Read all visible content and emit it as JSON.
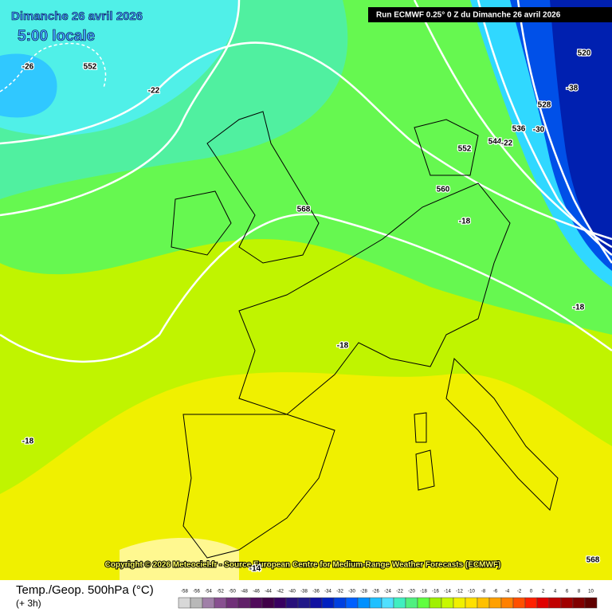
{
  "header": {
    "date": "Dimanche 26 avril 2026",
    "time": "5:00 locale",
    "run": "Run ECMWF 0.25° 0 Z du Dimanche 26 avril 2026"
  },
  "copyright": "Copyright © 2026 Meteociel.fr - Source European Centre for Medium-Range Weather Forecasts (ECMWF)",
  "contour_labels": [
    "-26",
    "552",
    "-22",
    "568",
    "552",
    "560",
    "-18",
    "520",
    "-38",
    "528",
    "536",
    "-30",
    "544",
    "-22",
    "-18",
    "-18",
    "-18",
    "568",
    "-14"
  ],
  "footer": {
    "title": "Temp./Geop. 500hPa (°C)",
    "step": "(+ 3h)"
  },
  "scale": {
    "labels": [
      -58,
      -56,
      -54,
      -52,
      -50,
      -48,
      -46,
      -44,
      -42,
      -40,
      -38,
      -36,
      -34,
      -32,
      -30,
      -28,
      -26,
      -24,
      -22,
      -20,
      -18,
      -16,
      -14,
      -12,
      -10,
      -8,
      -6,
      -4,
      -2,
      0,
      2,
      4,
      6,
      8,
      10
    ],
    "colors": [
      "#d8d8d8",
      "#b8b8b8",
      "#a080a8",
      "#885090",
      "#703078",
      "#602068",
      "#500a5a",
      "#400048",
      "#380060",
      "#28107a",
      "#201888",
      "#1010a0",
      "#0020c0",
      "#0040e0",
      "#0060ff",
      "#0090ff",
      "#20c0ff",
      "#50e0ff",
      "#40eec0",
      "#50f080",
      "#60ff40",
      "#a0f000",
      "#c8f800",
      "#f0f000",
      "#ffe000",
      "#ffc000",
      "#ffa000",
      "#ff8000",
      "#ff5000",
      "#ff2000",
      "#e00000",
      "#c00000",
      "#a00000",
      "#800000",
      "#600000"
    ]
  }
}
